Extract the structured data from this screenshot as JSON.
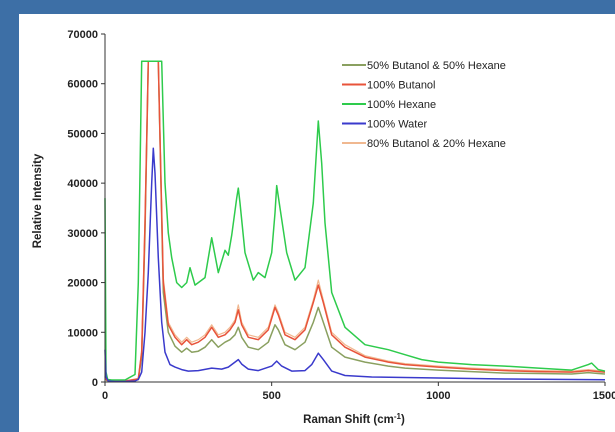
{
  "chart_data": {
    "type": "line",
    "title": "",
    "xlabel": "Raman Shift (cm",
    "xlabel_sup": "-1",
    "xlabel_close": ")",
    "ylabel": "Relative Intensity",
    "xlim": [
      0,
      1500
    ],
    "ylim": [
      0,
      70000
    ],
    "x_ticks": [
      0,
      500,
      1000,
      1500
    ],
    "x_tick_labels": [
      "0",
      "500",
      "1000",
      "1500"
    ],
    "y_ticks": [
      0,
      10000,
      20000,
      30000,
      40000,
      50000,
      60000,
      70000
    ],
    "y_tick_labels": [
      "0",
      "10000",
      "20000",
      "30000",
      "40000",
      "50000",
      "60000",
      "70000"
    ],
    "grid": false,
    "legend_position": "top-right",
    "series": [
      {
        "name": "50% Butanol & 50% Hexane",
        "color": "#8aa060",
        "x": [
          0,
          5,
          20,
          60,
          100,
          110,
          120,
          130,
          140,
          160,
          175,
          190,
          210,
          230,
          245,
          260,
          280,
          300,
          320,
          340,
          360,
          375,
          390,
          400,
          410,
          430,
          460,
          490,
          510,
          520,
          540,
          570,
          600,
          625,
          640,
          655,
          680,
          720,
          780,
          850,
          900,
          1000,
          1100,
          1200,
          1300,
          1400,
          1450,
          1480,
          1500
        ],
        "y": [
          1000,
          300,
          200,
          200,
          500,
          5000,
          30000,
          64500,
          64500,
          64500,
          18000,
          10000,
          7200,
          6000,
          6800,
          6000,
          6200,
          7000,
          8500,
          7000,
          8000,
          8500,
          9500,
          11000,
          9000,
          7000,
          6500,
          8000,
          11500,
          10500,
          7500,
          6500,
          8000,
          12000,
          15000,
          12000,
          7000,
          5000,
          4000,
          3200,
          2800,
          2400,
          2100,
          1800,
          1700,
          1600,
          1900,
          1700,
          1600
        ]
      },
      {
        "name": "100% Butanol",
        "color": "#e8533a",
        "x": [
          0,
          5,
          20,
          60,
          100,
          110,
          120,
          130,
          140,
          160,
          175,
          190,
          210,
          230,
          245,
          260,
          280,
          300,
          320,
          340,
          360,
          375,
          390,
          400,
          410,
          430,
          460,
          490,
          510,
          520,
          540,
          570,
          600,
          625,
          640,
          655,
          680,
          720,
          780,
          850,
          900,
          1000,
          1100,
          1200,
          1300,
          1400,
          1450,
          1480,
          1500
        ],
        "y": [
          1200,
          400,
          200,
          200,
          600,
          6000,
          32000,
          64500,
          64500,
          64500,
          20000,
          11500,
          9000,
          7500,
          8500,
          7500,
          8000,
          9000,
          11000,
          9000,
          9500,
          10500,
          12000,
          14500,
          11500,
          9000,
          8500,
          10500,
          15000,
          13500,
          9500,
          8500,
          10500,
          16000,
          19500,
          16000,
          9500,
          7000,
          5000,
          4000,
          3500,
          3000,
          2600,
          2300,
          2100,
          2000,
          2300,
          2100,
          2000
        ]
      },
      {
        "name": "100% Hexane",
        "color": "#2ecb4c",
        "x": [
          0,
          3,
          8,
          20,
          60,
          90,
          100,
          110,
          120,
          140,
          170,
          180,
          190,
          200,
          215,
          230,
          245,
          255,
          270,
          300,
          320,
          340,
          360,
          370,
          380,
          395,
          400,
          405,
          420,
          445,
          460,
          480,
          500,
          510,
          515,
          525,
          545,
          570,
          600,
          625,
          640,
          650,
          660,
          680,
          720,
          780,
          850,
          900,
          950,
          1000,
          1100,
          1200,
          1300,
          1400,
          1450,
          1460,
          1480,
          1500
        ],
        "y": [
          37000,
          2000,
          500,
          400,
          400,
          1500,
          20000,
          64500,
          64500,
          64500,
          64500,
          40000,
          30000,
          25000,
          20000,
          19000,
          20000,
          23000,
          19500,
          21000,
          29000,
          22000,
          26500,
          25500,
          29500,
          37000,
          39000,
          36000,
          26000,
          20500,
          22000,
          21000,
          26000,
          34000,
          39500,
          35000,
          26000,
          20500,
          23000,
          36000,
          52500,
          44000,
          32000,
          18000,
          11000,
          7500,
          6500,
          5500,
          4500,
          4000,
          3500,
          3200,
          2800,
          2400,
          3500,
          3800,
          2500,
          2200
        ]
      },
      {
        "name": "100% Water",
        "color": "#3a3acc",
        "x": [
          0,
          3,
          10,
          30,
          60,
          90,
          100,
          110,
          120,
          130,
          140,
          145,
          150,
          160,
          170,
          180,
          195,
          210,
          230,
          250,
          280,
          320,
          350,
          370,
          390,
          400,
          410,
          430,
          460,
          500,
          515,
          530,
          560,
          600,
          620,
          640,
          655,
          680,
          720,
          800,
          900,
          1000,
          1100,
          1200,
          1300,
          1400,
          1500
        ],
        "y": [
          6500,
          1000,
          200,
          100,
          100,
          200,
          500,
          2000,
          10000,
          22000,
          40000,
          47000,
          42000,
          25000,
          12000,
          6000,
          3500,
          3000,
          2500,
          2200,
          2300,
          2800,
          2600,
          3000,
          4000,
          4500,
          3600,
          2600,
          2300,
          3200,
          4200,
          3200,
          2200,
          2300,
          3500,
          5800,
          4500,
          2200,
          1300,
          1000,
          900,
          800,
          700,
          600,
          550,
          500,
          450
        ]
      },
      {
        "name": "80% Butanol & 20% Hexane",
        "color": "#f0b890",
        "x": [
          0,
          5,
          20,
          60,
          100,
          110,
          120,
          130,
          140,
          160,
          175,
          190,
          210,
          230,
          245,
          260,
          280,
          300,
          320,
          340,
          360,
          375,
          390,
          400,
          410,
          430,
          460,
          490,
          510,
          520,
          540,
          570,
          600,
          625,
          640,
          655,
          680,
          720,
          780,
          850,
          900,
          1000,
          1100,
          1200,
          1300,
          1400,
          1450,
          1480,
          1500
        ],
        "y": [
          1300,
          450,
          250,
          250,
          700,
          6500,
          33000,
          64500,
          64500,
          64500,
          21000,
          12000,
          9500,
          8000,
          9000,
          8000,
          8500,
          9500,
          11500,
          9500,
          10000,
          11000,
          12500,
          15500,
          12000,
          9500,
          9000,
          11000,
          15500,
          14000,
          10000,
          9000,
          11000,
          16500,
          20500,
          16500,
          10000,
          7500,
          5300,
          4200,
          3700,
          3200,
          2800,
          2500,
          2300,
          2200,
          2500,
          2300,
          2200
        ]
      }
    ]
  }
}
